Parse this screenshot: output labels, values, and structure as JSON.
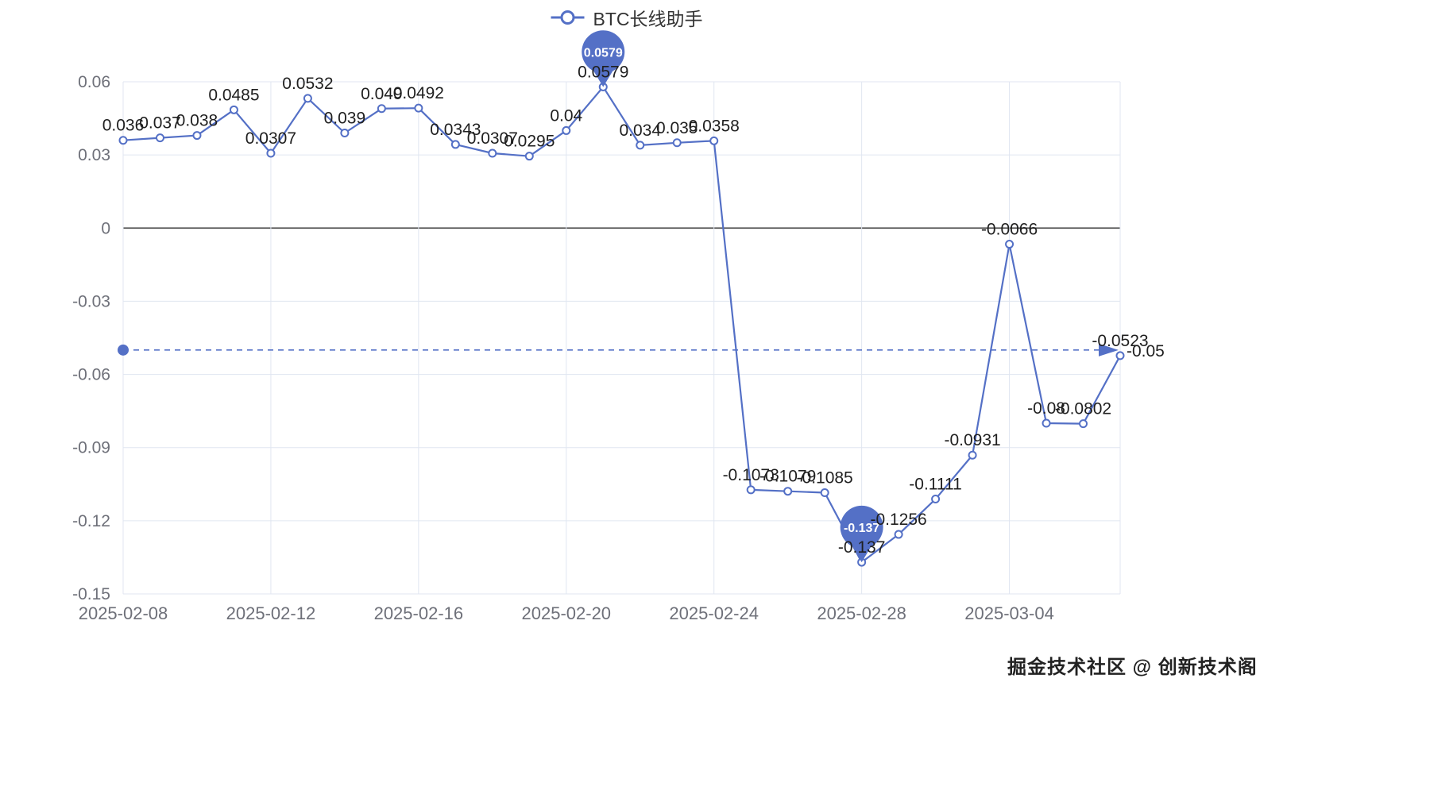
{
  "legend": {
    "label": "BTC长线助手"
  },
  "watermark": "掘金技术社区 @ 创新技术阁",
  "colors": {
    "line": "#5470C6",
    "marker_fill": "#ffffff",
    "pin": "#5470C6",
    "grid": "#E0E6F1",
    "zero_axis": "#555555",
    "axis_label": "#6E7079",
    "data_label": "#1f1f1f",
    "pin_text": "#ffffff"
  },
  "chart_data": {
    "type": "line",
    "title": "",
    "legend_position": "top-center",
    "grid": true,
    "series": [
      {
        "name": "BTC长线助手",
        "x": [
          "2025-02-08",
          "2025-02-09",
          "2025-02-10",
          "2025-02-11",
          "2025-02-12",
          "2025-02-13",
          "2025-02-14",
          "2025-02-15",
          "2025-02-16",
          "2025-02-17",
          "2025-02-18",
          "2025-02-19",
          "2025-02-20",
          "2025-02-21",
          "2025-02-22",
          "2025-02-23",
          "2025-02-24",
          "2025-02-25",
          "2025-02-26",
          "2025-02-27",
          "2025-02-28",
          "2025-03-01",
          "2025-03-02",
          "2025-03-03",
          "2025-03-04",
          "2025-03-05",
          "2025-03-06",
          "2025-03-07"
        ],
        "values": [
          0.036,
          0.037,
          0.038,
          0.0485,
          0.0307,
          0.0532,
          0.039,
          0.049,
          0.0492,
          0.0343,
          0.0307,
          0.0295,
          0.04,
          0.0579,
          0.034,
          0.035,
          0.0358,
          -0.1073,
          -0.1079,
          -0.1085,
          -0.137,
          -0.1256,
          -0.1111,
          -0.0931,
          -0.0066,
          -0.08,
          -0.0802,
          -0.0523
        ],
        "labels": [
          "0.036",
          "0.037",
          "0.038",
          "0.0485",
          "0.0307",
          "0.0532",
          "0.039",
          "0.049",
          "0.0492",
          "0.0343",
          "0.0307",
          "0.0295",
          "0.04",
          "0.0579",
          "0.034",
          "0.035",
          "0.0358",
          "-0.1073",
          "-0.1079",
          "-0.1085",
          "-0.137",
          "-0.1256",
          "-0.1111",
          "-0.0931",
          "-0.0066",
          "-0.08",
          "-0.0802",
          "-0.0523"
        ]
      }
    ],
    "x_ticks": [
      "2025-02-08",
      "2025-02-12",
      "2025-02-16",
      "2025-02-20",
      "2025-02-24",
      "2025-02-28",
      "2025-03-04"
    ],
    "y_ticks": [
      "0.06",
      "0.03",
      "0",
      "-0.03",
      "-0.06",
      "-0.09",
      "-0.12",
      "-0.15"
    ],
    "ylim": [
      -0.15,
      0.06
    ],
    "mark_points": [
      {
        "kind": "max",
        "value": 0.0579,
        "label": "0.0579"
      },
      {
        "kind": "min",
        "value": -0.137,
        "label": "-0.137"
      }
    ],
    "mark_line": {
      "value": -0.05,
      "label": "-0.05"
    }
  }
}
